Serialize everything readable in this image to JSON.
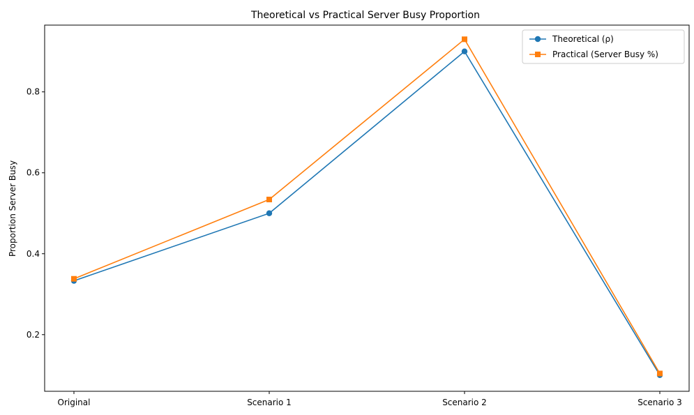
{
  "chart_data": {
    "type": "line",
    "title": "Theoretical vs Practical Server Busy Proportion",
    "xlabel": "",
    "ylabel": "Proportion Server Busy",
    "categories": [
      "Original",
      "Scenario 1",
      "Scenario 2",
      "Scenario 3"
    ],
    "ylim": [
      0.06,
      0.965
    ],
    "yticks": [
      0.2,
      0.4,
      0.6,
      0.8
    ],
    "ytick_labels": [
      "0.2",
      "0.4",
      "0.6",
      "0.8"
    ],
    "grid": false,
    "legend_position": "top-right",
    "series": [
      {
        "name": "Theoretical (ρ)",
        "values": [
          0.333,
          0.5,
          0.9,
          0.1
        ],
        "color": "#1f77b4",
        "marker": "circle"
      },
      {
        "name": "Practical (Server Busy %)",
        "values": [
          0.338,
          0.534,
          0.93,
          0.104
        ],
        "color": "#ff7f0e",
        "marker": "square"
      }
    ]
  }
}
